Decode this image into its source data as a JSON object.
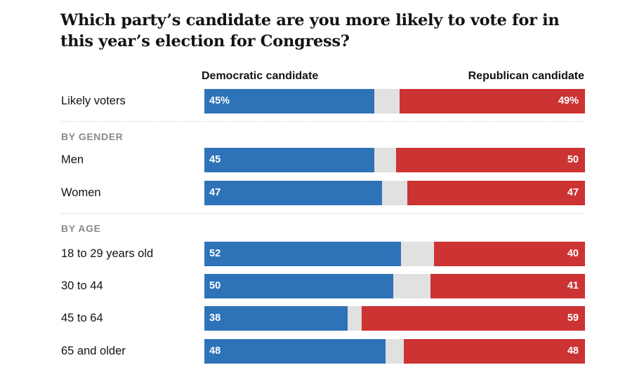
{
  "title": "Which party’s candidate are you more likely to vote for in this year’s election for Congress?",
  "colors": {
    "democratic": "#2e73b8",
    "republican": "#cc3333",
    "other": "#e1e1e1"
  },
  "chart_data": {
    "type": "bar",
    "title": "Which party’s candidate are you more likely to vote for in this year’s election for Congress?",
    "series_labels": {
      "dem": "Democratic candidate",
      "rep": "Republican candidate"
    },
    "rows": [
      {
        "label": "Likely voters",
        "dem": 45,
        "rep": 49,
        "dem_text": "45%",
        "rep_text": "49%"
      },
      {
        "section": "BY GENDER"
      },
      {
        "label": "Men",
        "dem": 45,
        "rep": 50,
        "dem_text": "45",
        "rep_text": "50"
      },
      {
        "label": "Women",
        "dem": 47,
        "rep": 47,
        "dem_text": "47",
        "rep_text": "47"
      },
      {
        "section": "BY AGE"
      },
      {
        "label": "18 to 29 years old",
        "dem": 52,
        "rep": 40,
        "dem_text": "52",
        "rep_text": "40"
      },
      {
        "label": "30 to 44",
        "dem": 50,
        "rep": 41,
        "dem_text": "50",
        "rep_text": "41"
      },
      {
        "label": "45 to 64",
        "dem": 38,
        "rep": 59,
        "dem_text": "38",
        "rep_text": "59"
      },
      {
        "label": "65 and older",
        "dem": 48,
        "rep": 48,
        "dem_text": "48",
        "rep_text": "48"
      }
    ]
  }
}
